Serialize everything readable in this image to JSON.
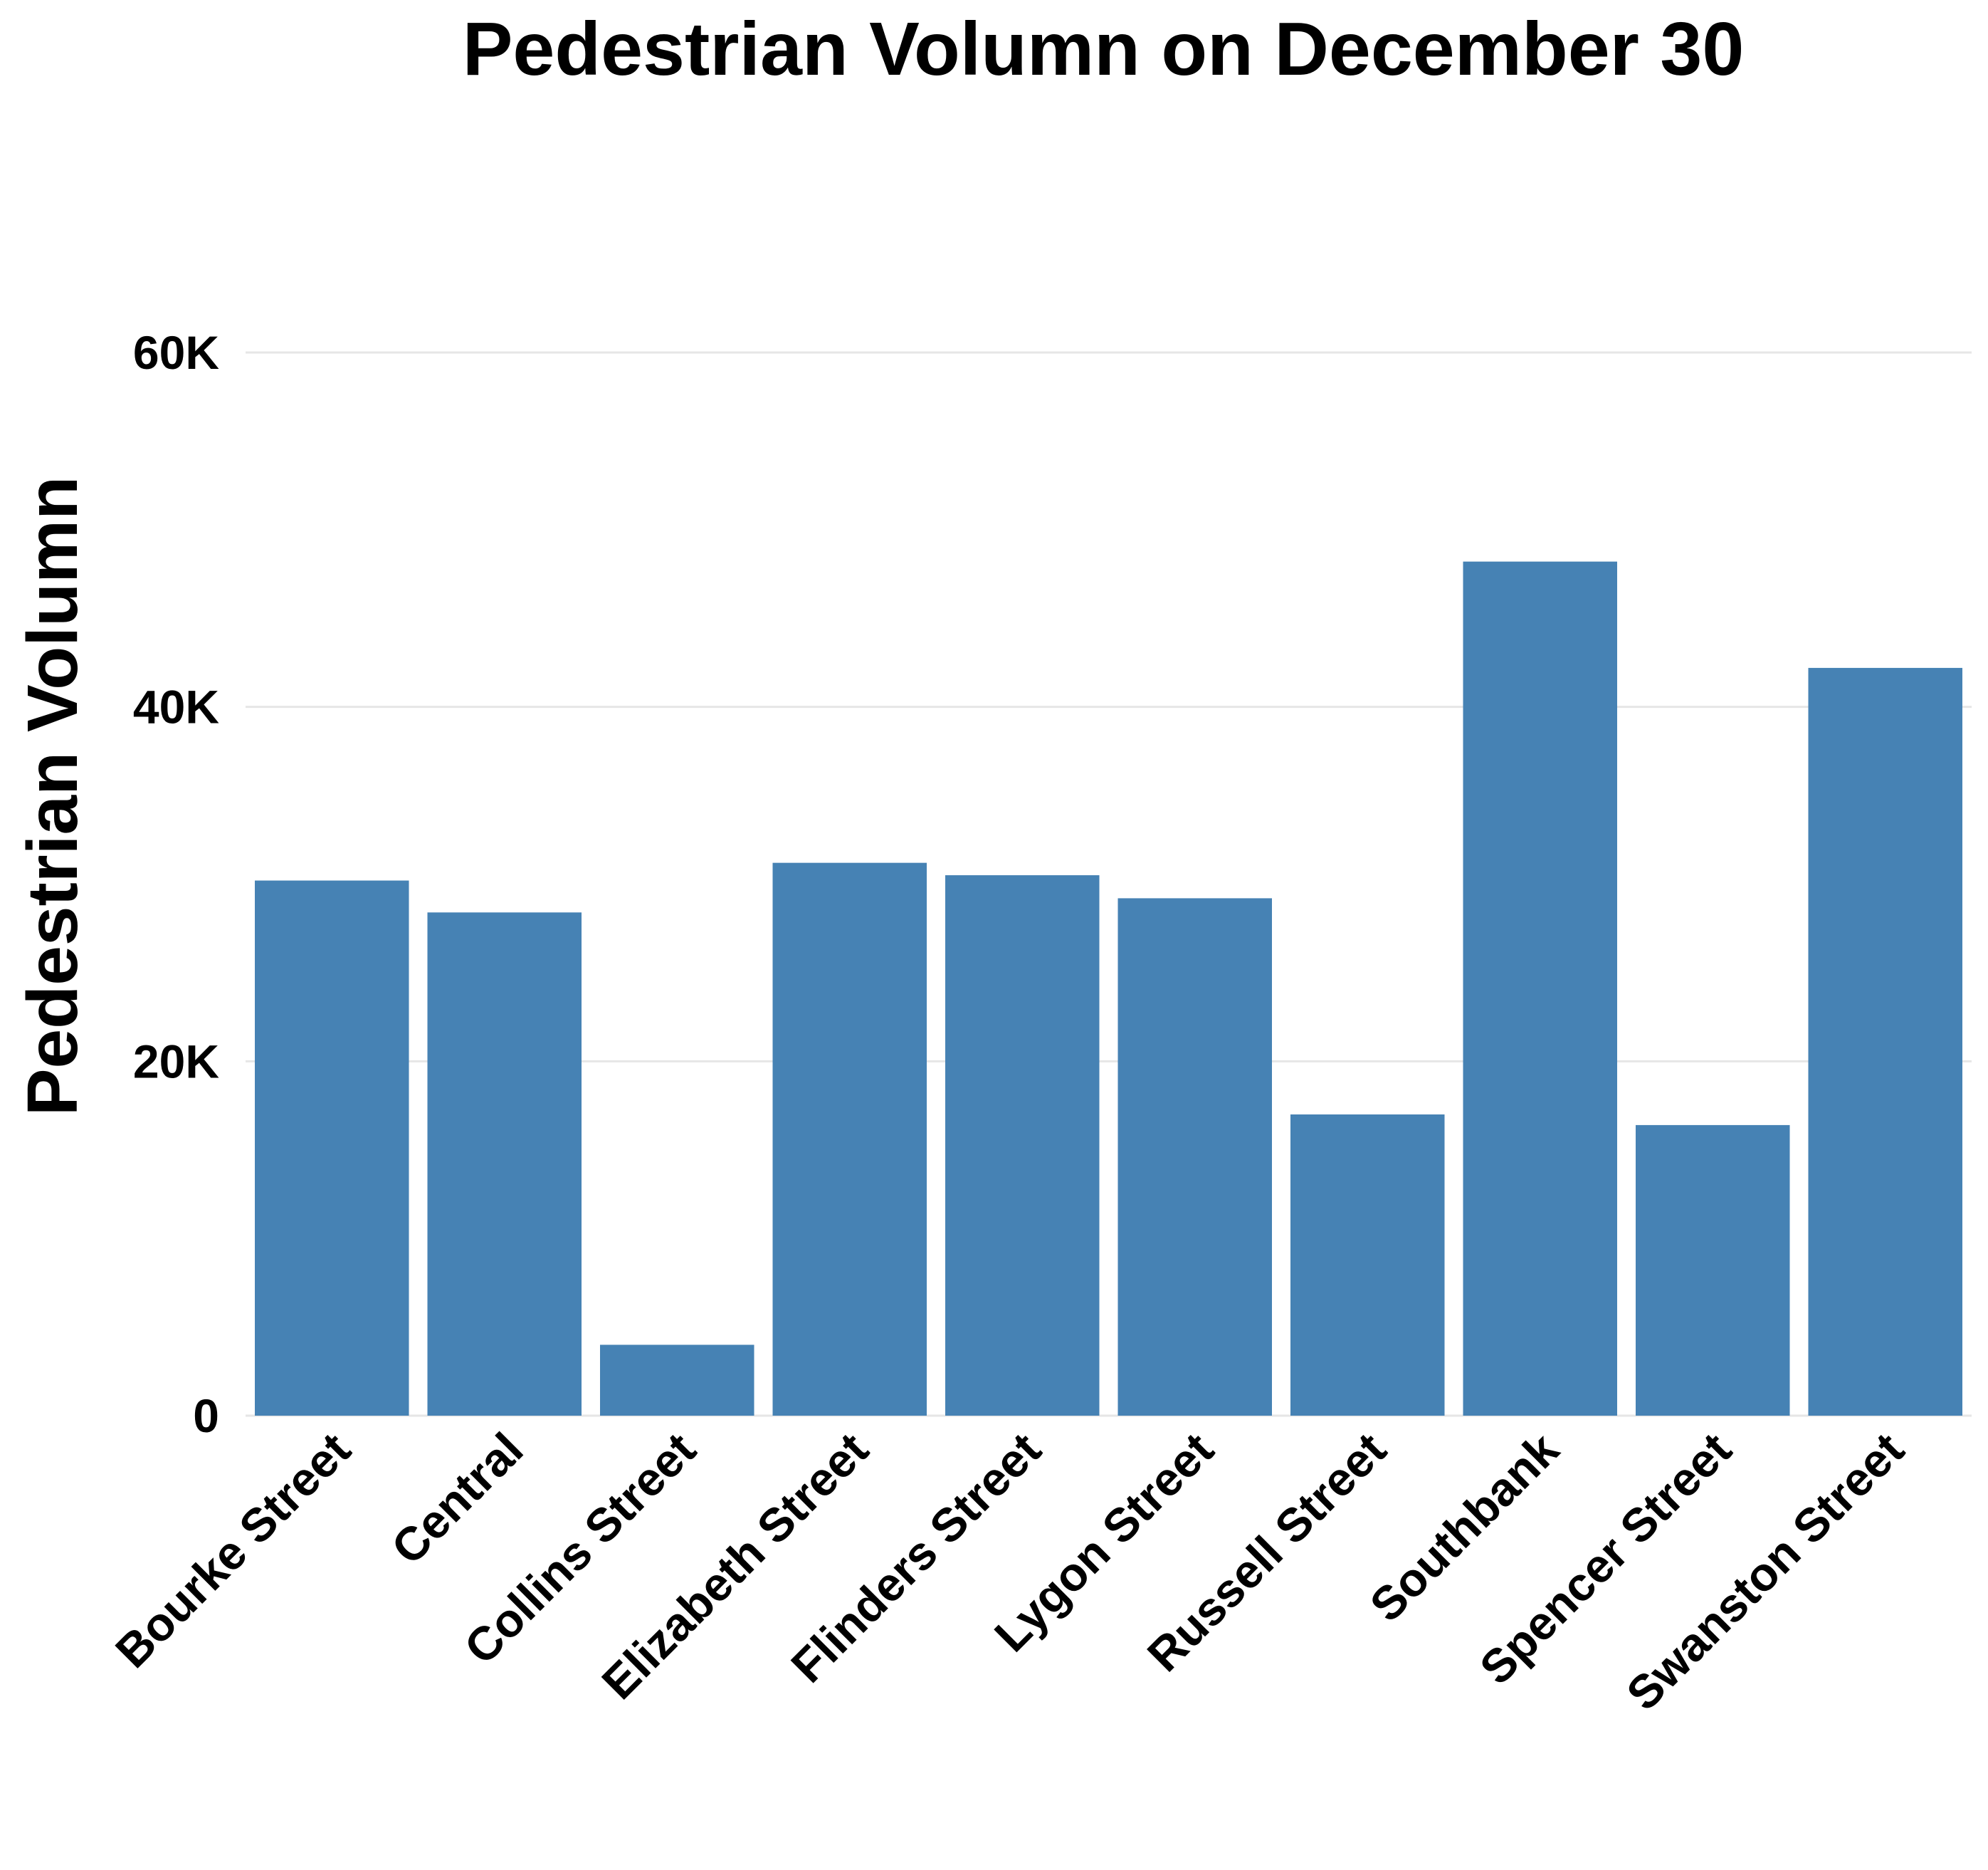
{
  "chart_data": {
    "type": "bar",
    "title": "Pedestrian Volumn on December 30",
    "xlabel": "",
    "ylabel": "Pedestrian Volumn",
    "categories": [
      "Bourke Street",
      "Central",
      "Collins Street",
      "Elizabeth Street",
      "Flinders Street",
      "Lygon Street",
      "Russell Street",
      "Southbank",
      "Spencer Street",
      "Swanston Street"
    ],
    "values": [
      30200,
      28400,
      4000,
      31200,
      30500,
      29200,
      17000,
      48200,
      16400,
      42200
    ],
    "ylim": [
      0,
      60000
    ],
    "yticks": [
      {
        "value": 0,
        "label": "0"
      },
      {
        "value": 20000,
        "label": "20K"
      },
      {
        "value": 40000,
        "label": "40K"
      },
      {
        "value": 60000,
        "label": "60K"
      }
    ],
    "grid": true,
    "legend": "none",
    "colors": {
      "bar": "#4682b4",
      "grid": "#e6e6e6",
      "text": "#000000"
    }
  }
}
